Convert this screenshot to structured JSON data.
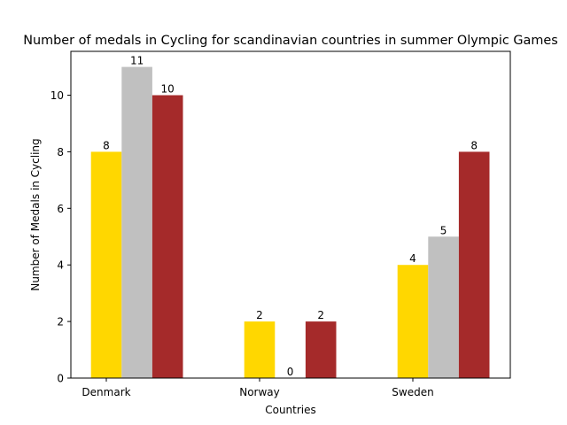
{
  "chart_data": {
    "type": "bar",
    "title": "Number of medals in Cycling for scandinavian countries in summer Olympic Games",
    "xlabel": "Countries",
    "ylabel": "Number of Medals in Cycling",
    "categories": [
      "Denmark",
      "Norway",
      "Sweden"
    ],
    "series": [
      {
        "values": [
          8,
          2,
          4
        ],
        "color": "#FFD700"
      },
      {
        "values": [
          11,
          0,
          5
        ],
        "color": "#C0C0C0"
      },
      {
        "values": [
          10,
          2,
          8
        ],
        "color": "#A52A2A"
      }
    ],
    "ylim": [
      0,
      11.55
    ],
    "yticks": [
      0,
      2,
      4,
      6,
      8,
      10
    ],
    "grid": false,
    "legend": "none"
  }
}
